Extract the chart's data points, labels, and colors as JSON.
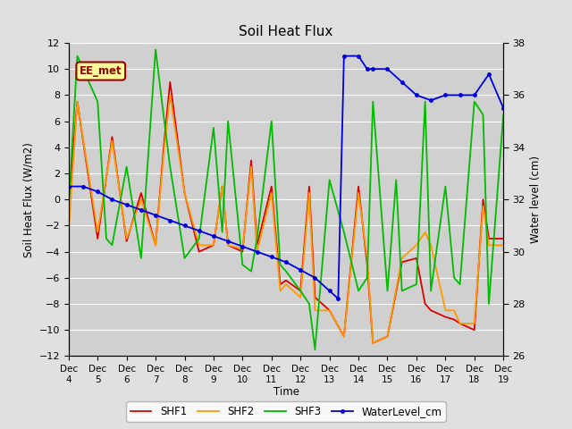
{
  "title": "Soil Heat Flux",
  "xlabel": "Time",
  "ylabel_left": "Soil Heat Flux (W/m2)",
  "ylabel_right": "Water level (cm)",
  "ylim_left": [
    -12,
    12
  ],
  "ylim_right": [
    26,
    38
  ],
  "background_color": "#e0e0e0",
  "plot_bg_color": "#d0d0d0",
  "annotation_text": "EE_met",
  "annotation_color": "#990000",
  "annotation_bg": "#ffff99",
  "x_labels": [
    "Dec 4",
    "Dec 5",
    "Dec 6",
    "Dec 7",
    "Dec 8",
    "Dec 9",
    "Dec 10",
    "Dec 11",
    "Dec 12",
    "Dec 13",
    "Dec 14",
    "Dec 15",
    "Dec 16",
    "Dec 17",
    "Dec 18",
    "Dec 19"
  ],
  "x_tick_positions": [
    0,
    1,
    2,
    3,
    4,
    5,
    6,
    7,
    8,
    9,
    10,
    11,
    12,
    13,
    14,
    15
  ],
  "SHF1_x": [
    0,
    0.3,
    1,
    1.5,
    2,
    2.5,
    3,
    3.3,
    3.5,
    4,
    4.5,
    5,
    5.3,
    5.5,
    6,
    6.3,
    6.5,
    7,
    7.3,
    7.5,
    8,
    8.3,
    8.5,
    9,
    9.5,
    10,
    10.3,
    10.5,
    11,
    11.5,
    12,
    12.3,
    12.5,
    13,
    13.3,
    13.5,
    14,
    14.3,
    14.5,
    15
  ],
  "SHF1": [
    -0.2,
    7.5,
    -3.0,
    4.8,
    -3.2,
    0.5,
    -3.5,
    4.5,
    9.0,
    0.5,
    -4.0,
    -3.5,
    1.0,
    -3.5,
    -4.0,
    3.0,
    -3.5,
    1.0,
    -6.5,
    -6.2,
    -7.0,
    1.0,
    -7.5,
    -8.5,
    -10.5,
    1.0,
    -5.0,
    -11.0,
    -10.5,
    -4.8,
    -4.5,
    -8.0,
    -8.5,
    -9.0,
    -9.2,
    -9.5,
    -10.0,
    0.0,
    -3.0,
    -3.0
  ],
  "SHF2_x": [
    0,
    0.3,
    1,
    1.5,
    2,
    2.5,
    3,
    3.3,
    3.5,
    4,
    4.5,
    5,
    5.3,
    5.5,
    6,
    6.3,
    6.5,
    7,
    7.3,
    7.5,
    8,
    8.3,
    8.5,
    9,
    9.5,
    10,
    10.3,
    10.5,
    11,
    11.5,
    12,
    12.3,
    12.5,
    13,
    13.3,
    13.5,
    14,
    14.3,
    14.5,
    15
  ],
  "SHF2": [
    -2.5,
    7.5,
    -2.5,
    4.5,
    -3.0,
    0.0,
    -3.5,
    4.0,
    8.0,
    0.5,
    -3.5,
    -3.5,
    1.0,
    -3.5,
    -3.8,
    2.5,
    -4.0,
    0.5,
    -7.0,
    -6.5,
    -7.5,
    0.5,
    -8.5,
    -8.5,
    -10.5,
    0.5,
    -4.5,
    -11.0,
    -10.5,
    -4.5,
    -3.5,
    -2.5,
    -3.5,
    -8.5,
    -8.5,
    -9.5,
    -9.5,
    -0.5,
    -3.5,
    -3.5
  ],
  "SHF3_x": [
    0,
    0.3,
    1,
    1.3,
    1.5,
    2,
    2.5,
    3,
    3.3,
    3.5,
    4,
    4.5,
    5,
    5.3,
    5.5,
    6,
    6.3,
    6.5,
    7,
    7.3,
    7.5,
    8,
    8.3,
    8.5,
    9,
    9.5,
    10,
    10.3,
    10.5,
    11,
    11.3,
    11.5,
    12,
    12.3,
    12.5,
    13,
    13.3,
    13.5,
    14,
    14.3,
    14.5,
    15
  ],
  "SHF3": [
    -0.5,
    11.0,
    7.5,
    -3.0,
    -3.5,
    2.5,
    -4.5,
    11.5,
    6.0,
    2.5,
    -4.5,
    -3.0,
    5.5,
    -2.5,
    6.0,
    -5.0,
    -5.5,
    -3.0,
    6.0,
    -5.0,
    -5.5,
    -7.0,
    -8.0,
    -11.5,
    1.5,
    -2.5,
    -7.0,
    -6.0,
    7.5,
    -7.0,
    1.5,
    -7.0,
    -6.5,
    7.5,
    -7.0,
    1.0,
    -6.0,
    -6.5,
    7.5,
    6.5,
    -8.0,
    6.5
  ],
  "WL_x": [
    0,
    0.5,
    1.0,
    1.5,
    2.0,
    2.5,
    3.0,
    3.5,
    4.0,
    4.5,
    5.0,
    5.5,
    6.0,
    6.5,
    7.0,
    7.5,
    8.0,
    8.5,
    9.0,
    9.3,
    9.5,
    10.0,
    10.3,
    10.5,
    11.0,
    11.5,
    12.0,
    12.5,
    13.0,
    13.5,
    14.0,
    14.5,
    15.0
  ],
  "WaterLevel": [
    32.5,
    32.5,
    32.3,
    32.0,
    31.8,
    31.6,
    31.4,
    31.2,
    31.0,
    30.8,
    30.6,
    30.4,
    30.2,
    30.0,
    29.8,
    29.6,
    29.3,
    29.0,
    28.5,
    28.2,
    37.5,
    37.5,
    37.0,
    37.0,
    37.0,
    36.5,
    36.0,
    35.8,
    36.0,
    36.0,
    36.0,
    36.8,
    35.5
  ],
  "colors": {
    "SHF1": "#dd0000",
    "SHF2": "#ff9900",
    "SHF3": "#00bb00",
    "WaterLevel": "#0000dd"
  },
  "line_width": 1.3,
  "marker_size_wl": 2.5
}
